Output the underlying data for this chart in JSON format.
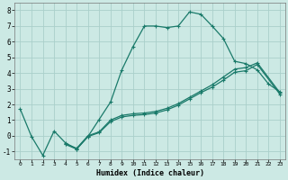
{
  "xlabel": "Humidex (Indice chaleur)",
  "bg_color": "#cce9e4",
  "grid_color": "#aacfca",
  "line_color": "#1a7a6a",
  "xlim": [
    -0.5,
    23.5
  ],
  "ylim": [
    -1.5,
    8.5
  ],
  "yticks": [
    -1,
    0,
    1,
    2,
    3,
    4,
    5,
    6,
    7,
    8
  ],
  "xticks": [
    0,
    1,
    2,
    3,
    4,
    5,
    6,
    7,
    8,
    9,
    10,
    11,
    12,
    13,
    14,
    15,
    16,
    17,
    18,
    19,
    20,
    21,
    22,
    23
  ],
  "series1_x": [
    0,
    1,
    2,
    3,
    4,
    5,
    6,
    7,
    8,
    9,
    10,
    11,
    12,
    13,
    14,
    15,
    16,
    17,
    18,
    19,
    20,
    21,
    22,
    23
  ],
  "series1_y": [
    1.7,
    -0.05,
    -1.25,
    0.3,
    -0.45,
    -0.85,
    -0.05,
    1.05,
    2.15,
    4.2,
    5.7,
    7.0,
    7.0,
    6.9,
    7.0,
    7.9,
    7.75,
    7.0,
    6.2,
    4.75,
    4.6,
    4.2,
    3.3,
    2.8
  ],
  "series2_x": [
    4,
    5,
    6,
    7,
    8,
    9,
    10,
    11,
    12,
    13,
    14,
    15,
    16,
    17,
    18,
    19,
    20,
    21,
    23
  ],
  "series2_y": [
    -0.5,
    -0.8,
    0.0,
    0.25,
    1.0,
    1.3,
    1.4,
    1.45,
    1.55,
    1.75,
    2.05,
    2.45,
    2.85,
    3.25,
    3.75,
    4.25,
    4.35,
    4.65,
    2.75
  ],
  "series3_x": [
    4,
    5,
    6,
    7,
    8,
    9,
    10,
    11,
    12,
    13,
    14,
    15,
    16,
    17,
    18,
    19,
    20,
    21,
    23
  ],
  "series3_y": [
    -0.55,
    -0.85,
    -0.05,
    0.2,
    0.9,
    1.2,
    1.3,
    1.35,
    1.45,
    1.65,
    1.95,
    2.35,
    2.75,
    3.1,
    3.55,
    4.05,
    4.15,
    4.55,
    2.65
  ]
}
